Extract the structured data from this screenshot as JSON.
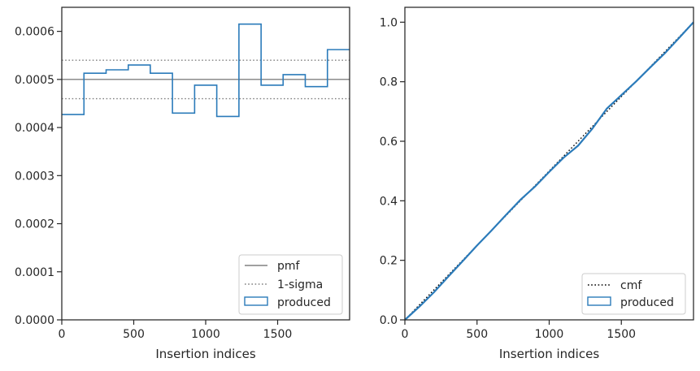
{
  "colors": {
    "produced": "#2b7bba",
    "pmf": "#808080",
    "sigma": "#808080",
    "cmf": "#000000",
    "axis": "#262626"
  },
  "chart_data": [
    {
      "type": "line",
      "xlabel": "Insertion indices",
      "ylabel": "",
      "xlim": [
        0,
        2000
      ],
      "ylim": [
        0,
        0.00065
      ],
      "x_ticks": [
        0,
        500,
        1000,
        1500
      ],
      "x_tick_labels": [
        "0",
        "500",
        "1000",
        "1500"
      ],
      "y_ticks": [
        0,
        0.0001,
        0.0002,
        0.0003,
        0.0004,
        0.0005,
        0.0006
      ],
      "y_tick_labels": [
        "0.0000",
        "0.0001",
        "0.0002",
        "0.0003",
        "0.0004",
        "0.0005",
        "0.0006"
      ],
      "grid": false,
      "legend_position": "lower-right",
      "legend": [
        "pmf",
        "1-sigma",
        "produced"
      ],
      "pmf": 0.0005,
      "sigma_band": [
        0.00046,
        0.00054
      ],
      "series": [
        {
          "name": "produced",
          "style": "step",
          "bin_edges": [
            0,
            154,
            308,
            462,
            615,
            769,
            923,
            1077,
            1231,
            1385,
            1538,
            1692,
            1846,
            2000
          ],
          "values": [
            0.000427,
            0.000513,
            0.00052,
            0.00053,
            0.000513,
            0.00043,
            0.000488,
            0.000423,
            0.000615,
            0.000488,
            0.00051,
            0.000485,
            0.000562
          ]
        }
      ]
    },
    {
      "type": "line",
      "xlabel": "Insertion indices",
      "ylabel": "",
      "xlim": [
        0,
        2000
      ],
      "ylim": [
        0,
        1.05
      ],
      "x_ticks": [
        0,
        500,
        1000,
        1500
      ],
      "x_tick_labels": [
        "0",
        "500",
        "1000",
        "1500"
      ],
      "y_ticks": [
        0,
        0.2,
        0.4,
        0.6,
        0.8,
        1.0
      ],
      "y_tick_labels": [
        "0.0",
        "0.2",
        "0.4",
        "0.6",
        "0.8",
        "1.0"
      ],
      "grid": false,
      "legend_position": "lower-right",
      "legend": [
        "cmf",
        "produced"
      ],
      "series": [
        {
          "name": "cmf",
          "style": "dotted",
          "x": [
            0,
            2000
          ],
          "y": [
            0,
            1.0
          ]
        },
        {
          "name": "produced",
          "style": "line",
          "x": [
            0,
            100,
            200,
            300,
            400,
            500,
            600,
            700,
            800,
            900,
            1000,
            1100,
            1200,
            1300,
            1400,
            1500,
            1600,
            1700,
            1800,
            1900,
            2000
          ],
          "y": [
            0,
            0.044,
            0.092,
            0.145,
            0.197,
            0.25,
            0.3,
            0.352,
            0.403,
            0.447,
            0.497,
            0.545,
            0.585,
            0.643,
            0.71,
            0.755,
            0.8,
            0.848,
            0.895,
            0.947,
            1.0
          ]
        }
      ]
    }
  ]
}
